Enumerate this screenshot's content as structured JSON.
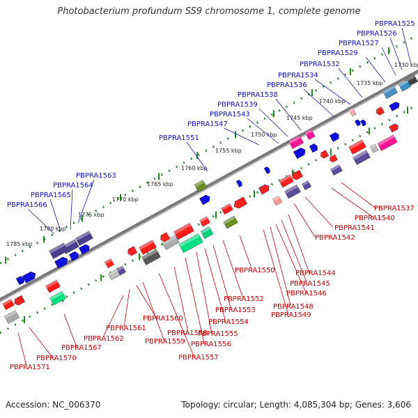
{
  "title": "Photobacterium profundum SS9 chromosome 1, complete genome",
  "footer": {
    "accession": "Accession: NC_006370",
    "summary": "Topology: circular; Length: 4,085,304 bp; Genes: 3,606"
  },
  "colors": {
    "axis": "#8a8a8a",
    "tick": "#1e8a1e",
    "label_upper": "#1111cc",
    "label_lower": "#cc0000"
  },
  "scale_labels": [
    "1730 kbp",
    "1735 kbp",
    "1740 kbp",
    "1745 kbp",
    "1750 kbp",
    "1755 kbp",
    "1760 kbp",
    "1765 kbp",
    "1770 kbp",
    "1775 kbp",
    "1780 kbp",
    "1785 kbp"
  ],
  "genes_upper": [
    "PBPRA1525",
    "PBPRA1526",
    "PBPRA1527",
    "PBPRA1529",
    "PBPRA1532",
    "PBPRA1534",
    "PBPRA1536",
    "PBPRA1538",
    "PBPRA1539",
    "PBPRA1543",
    "PBPRA1547",
    "PBPRA1551",
    "PBPRA1563",
    "PBPRA1564",
    "PBPRA1565",
    "PBPRA1566"
  ],
  "genes_lower": [
    "PBPRA1537",
    "PBPRA1540",
    "PBPRA1541",
    "PBPRA1542",
    "PBPRA1544",
    "PBPRA1545",
    "PBPRA1546",
    "PBPRA1548",
    "PBPRA1549",
    "PBPRA1550",
    "PBPRA1552",
    "PBPRA1553",
    "PBPRA1554",
    "PBPRA1555",
    "PBPRA1556",
    "PBPRA1557",
    "PBPRA1558",
    "PBPRA1559",
    "PBPRA1560",
    "PBPRA1561",
    "PBPRA1562",
    "PBPRA1567",
    "PBPRA1570",
    "PBPRA1571"
  ]
}
